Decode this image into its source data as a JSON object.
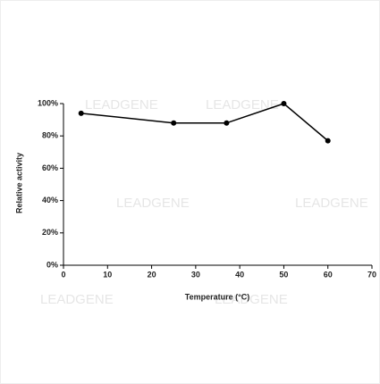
{
  "chart_data": {
    "type": "line",
    "x_label": "Temperature (°C)",
    "y_label": "Relative activity",
    "watermark": "LEADGENE",
    "x": [
      4,
      25,
      37,
      50,
      60
    ],
    "series": [
      {
        "color": "#000000",
        "values": [
          94,
          88,
          88,
          100,
          77
        ]
      }
    ],
    "xlim": [
      0,
      70
    ],
    "xticks": [
      0,
      10,
      20,
      30,
      40,
      50,
      60,
      70
    ],
    "ylim": [
      0,
      100
    ],
    "yticks": [
      {
        "value": 0,
        "label": "0%"
      },
      {
        "value": 20,
        "label": "20%"
      },
      {
        "value": 40,
        "label": "40%"
      },
      {
        "value": 60,
        "label": "60%"
      },
      {
        "value": 80,
        "label": "80%"
      },
      {
        "value": 100,
        "label": "100%"
      }
    ],
    "grid": false
  }
}
